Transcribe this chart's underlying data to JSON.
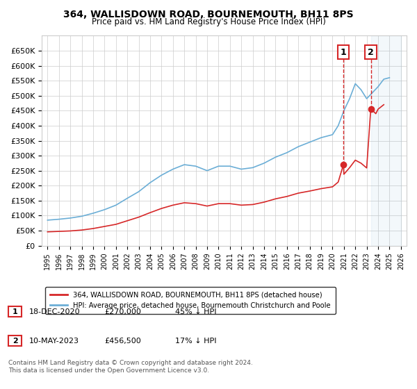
{
  "title": "364, WALLISDOWN ROAD, BOURNEMOUTH, BH11 8PS",
  "subtitle": "Price paid vs. HM Land Registry's House Price Index (HPI)",
  "legend_line1": "364, WALLISDOWN ROAD, BOURNEMOUTH, BH11 8PS (detached house)",
  "legend_line2": "HPI: Average price, detached house, Bournemouth Christchurch and Poole",
  "annotation1_label": "1",
  "annotation1_date": "18-DEC-2020",
  "annotation1_price": "£270,000",
  "annotation1_pct": "45% ↓ HPI",
  "annotation2_label": "2",
  "annotation2_date": "10-MAY-2023",
  "annotation2_price": "£456,500",
  "annotation2_pct": "17% ↓ HPI",
  "footer": "Contains HM Land Registry data © Crown copyright and database right 2024.\nThis data is licensed under the Open Government Licence v3.0.",
  "hpi_color": "#6baed6",
  "price_color": "#d62728",
  "sale1_x": 2020.96,
  "sale1_y": 270000,
  "sale2_x": 2023.36,
  "sale2_y": 456500,
  "ylim": [
    0,
    700000
  ],
  "yticks": [
    0,
    50000,
    100000,
    150000,
    200000,
    250000,
    300000,
    350000,
    400000,
    450000,
    500000,
    550000,
    600000,
    650000
  ],
  "xlim": [
    1994.5,
    2026.5
  ],
  "xticks": [
    1995,
    1996,
    1997,
    1998,
    1999,
    2000,
    2001,
    2002,
    2003,
    2004,
    2005,
    2006,
    2007,
    2008,
    2009,
    2010,
    2011,
    2012,
    2013,
    2014,
    2015,
    2016,
    2017,
    2018,
    2019,
    2020,
    2021,
    2022,
    2023,
    2024,
    2025,
    2026
  ],
  "background_color": "#ffffff",
  "grid_color": "#cccccc"
}
